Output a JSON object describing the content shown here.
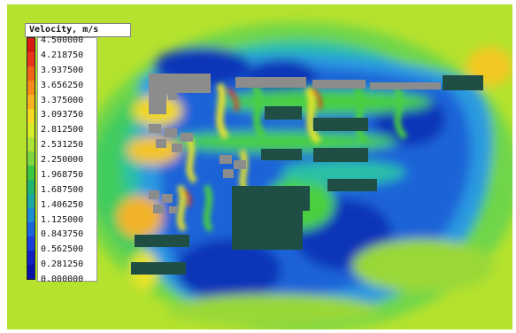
{
  "legend": {
    "title": "Velocity, m/s",
    "values": [
      "4.500000",
      "4.218750",
      "3.937500",
      "3.656250",
      "3.375000",
      "3.093750",
      "2.812500",
      "2.531250",
      "2.250000",
      "1.968750",
      "1.687500",
      "1.406250",
      "1.125000",
      "0.843750",
      "0.562500",
      "0.281250",
      "0.000000"
    ],
    "colors": [
      "#d81a10",
      "#e8341a",
      "#f06418",
      "#f58c1a",
      "#f7b21e",
      "#f4da22",
      "#d8ec2a",
      "#aee436",
      "#7cd83e",
      "#3cc840",
      "#20b66e",
      "#1aa8a2",
      "#1a8cd2",
      "#1a64dc",
      "#1a3edc",
      "#1020c4",
      "#0814a8"
    ]
  },
  "field_colors": {
    "background": "#b4e22e",
    "blue": "#1a5fd8",
    "deep_blue": "#1033b8",
    "cyan": "#28b8e0",
    "green": "#3ccc52",
    "yellow": "#e8e42c",
    "red": "#e83418",
    "building_gray": "#8c8c8c",
    "building_dark": "#1e4e44"
  }
}
